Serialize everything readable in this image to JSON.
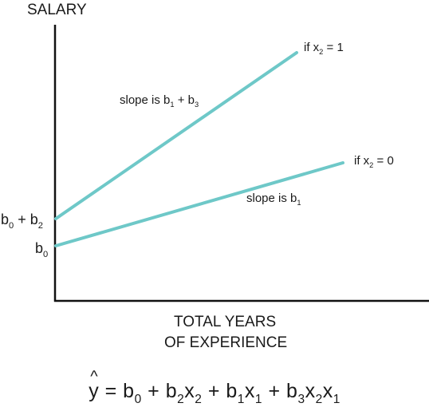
{
  "y_axis_title": "SALARY",
  "x_axis_title_line1": "TOTAL YEARS",
  "x_axis_title_line2": "OF EXPERIENCE",
  "upper_line": {
    "case_var": "if x",
    "case_sub": "2",
    "case_val": " = 1",
    "slope_text": "slope is b",
    "slope_sub1": "1",
    "slope_plus": " + b",
    "slope_sub2": "3",
    "intercept_b": "b",
    "intercept_sub1": "0",
    "intercept_plus": " + b",
    "intercept_sub2": "2"
  },
  "lower_line": {
    "case_var": "if x",
    "case_sub": "2",
    "case_val": " = 0",
    "slope_text": "slope is b",
    "slope_sub": "1",
    "intercept_b": "b",
    "intercept_sub": "0"
  },
  "equation": {
    "y": "y",
    "t1": " = b",
    "s1": "0",
    "t2": " + b",
    "s2": "2",
    "t3": "x",
    "s3": "2",
    "t4": " + b",
    "s4": "1",
    "t5": "x",
    "s5": "1",
    "t6": " + b",
    "s6": "3",
    "t7": "x",
    "s7": "2",
    "t8": "x",
    "s8": "1"
  },
  "colors": {
    "line": "#6ec8c8",
    "axis": "#111111"
  }
}
